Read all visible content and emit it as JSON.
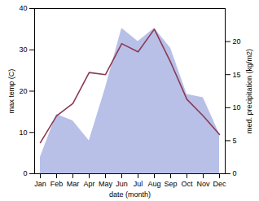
{
  "chart_data": {
    "type": "line",
    "categories": [
      "Jan",
      "Feb",
      "Mar",
      "Apr",
      "May",
      "Jun",
      "Jul",
      "Aug",
      "Sep",
      "Oct",
      "Nov",
      "Dec"
    ],
    "xlabel": "date (month)",
    "ylabel": "max temp (C)",
    "y2label": "med. precipitation (kg/m2)",
    "ylim": [
      0,
      40
    ],
    "yticks": [
      0,
      10,
      20,
      30,
      40
    ],
    "y2lim": [
      0,
      25
    ],
    "y2ticks": [
      0,
      5,
      10,
      15,
      20
    ],
    "series": [
      {
        "type": "area",
        "axis": "y2",
        "color": "#b8c0e8",
        "values": [
          2.5,
          9.0,
          8.0,
          5.0,
          13.0,
          22.0,
          20.0,
          22.0,
          19.0,
          12.0,
          11.5,
          6.0
        ]
      },
      {
        "type": "line",
        "color": "#8B3A52",
        "values": [
          7.5,
          14.0,
          17.0,
          24.5,
          24.0,
          31.5,
          29.5,
          35.0,
          27.0,
          18.0,
          14.0,
          9.5
        ]
      }
    ]
  }
}
